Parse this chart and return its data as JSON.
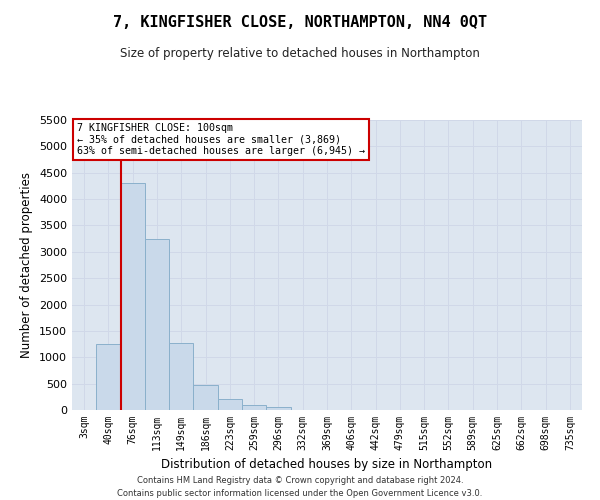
{
  "title": "7, KINGFISHER CLOSE, NORTHAMPTON, NN4 0QT",
  "subtitle": "Size of property relative to detached houses in Northampton",
  "xlabel": "Distribution of detached houses by size in Northampton",
  "ylabel": "Number of detached properties",
  "footer_line1": "Contains HM Land Registry data © Crown copyright and database right 2024.",
  "footer_line2": "Contains public sector information licensed under the Open Government Licence v3.0.",
  "bar_labels": [
    "3sqm",
    "40sqm",
    "76sqm",
    "113sqm",
    "149sqm",
    "186sqm",
    "223sqm",
    "259sqm",
    "296sqm",
    "332sqm",
    "369sqm",
    "406sqm",
    "442sqm",
    "479sqm",
    "515sqm",
    "552sqm",
    "589sqm",
    "625sqm",
    "662sqm",
    "698sqm",
    "735sqm"
  ],
  "bar_values": [
    0,
    1250,
    4300,
    3250,
    1270,
    480,
    200,
    100,
    60,
    0,
    0,
    0,
    0,
    0,
    0,
    0,
    0,
    0,
    0,
    0,
    0
  ],
  "bar_color": "#c9d9ea",
  "bar_edge_color": "#8ab0cb",
  "ylim": [
    0,
    5500
  ],
  "yticks": [
    0,
    500,
    1000,
    1500,
    2000,
    2500,
    3000,
    3500,
    4000,
    4500,
    5000,
    5500
  ],
  "vline_x": 1.5,
  "vline_color": "#cc0000",
  "annotation_text_line1": "7 KINGFISHER CLOSE: 100sqm",
  "annotation_text_line2": "← 35% of detached houses are smaller (3,869)",
  "annotation_text_line3": "63% of semi-detached houses are larger (6,945) →",
  "annotation_box_color": "#ffffff",
  "annotation_box_edge_color": "#cc0000",
  "grid_color": "#d0d8e8",
  "background_color": "#dde6f0"
}
